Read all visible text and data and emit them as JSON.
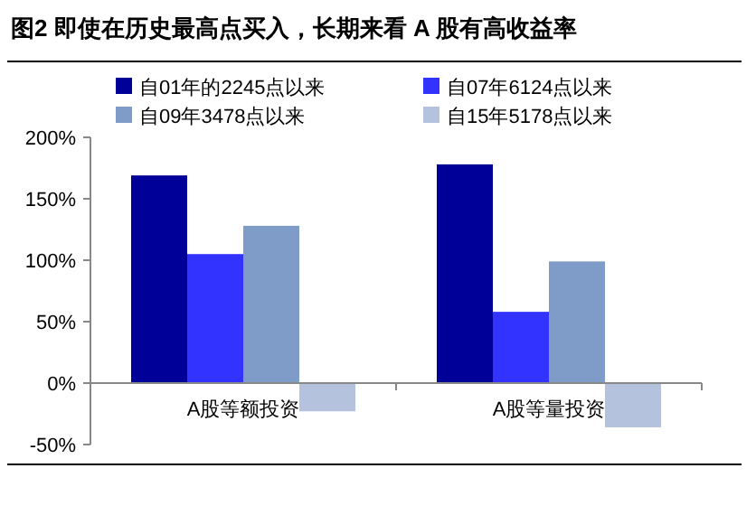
{
  "chart_data": {
    "type": "bar",
    "title": "图2 即使在历史最高点买入，长期来看 A 股有高收益率",
    "categories": [
      "A股等额投资",
      "A股等量投资"
    ],
    "series": [
      {
        "name": "自01年的2245点以来",
        "color": "#000099",
        "values": [
          169,
          178
        ]
      },
      {
        "name": "自07年6124点以来",
        "color": "#3333ff",
        "values": [
          105,
          58
        ]
      },
      {
        "name": "自09年3478点以来",
        "color": "#7f9cc8",
        "values": [
          128,
          99
        ]
      },
      {
        "name": "自15年5178点以来",
        "color": "#b4c2de",
        "values": [
          -23,
          -36
        ]
      }
    ],
    "ylim": [
      -50,
      200
    ],
    "yticks": [
      {
        "value": -50,
        "label": "-50%"
      },
      {
        "value": 0,
        "label": "0%"
      },
      {
        "value": 50,
        "label": "50%"
      },
      {
        "value": 100,
        "label": "100%"
      },
      {
        "value": 150,
        "label": "150%"
      },
      {
        "value": 200,
        "label": "200%"
      }
    ],
    "grid": false,
    "legend": "top"
  }
}
